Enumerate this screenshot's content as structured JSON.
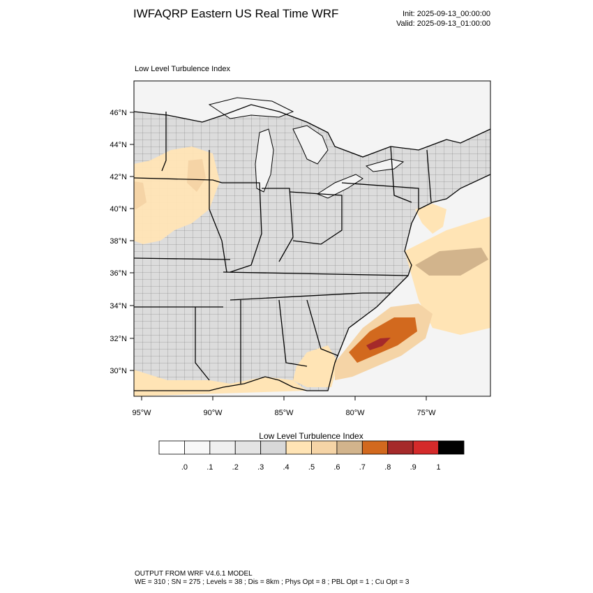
{
  "header": {
    "title": "IWFAQRP Eastern US Real Time WRF",
    "init": "Init: 2025-09-13_00:00:00",
    "valid": "Valid: 2025-09-13_01:00:00"
  },
  "map": {
    "subtitle": "Low Level Turbulence Index",
    "lat_ticks": [
      "46°N",
      "44°N",
      "42°N",
      "40°N",
      "38°N",
      "36°N",
      "34°N",
      "32°N",
      "30°N"
    ],
    "lon_ticks": [
      "95°W",
      "90°W",
      "85°W",
      "80°W",
      "75°W"
    ],
    "colors": {
      "land_low": "#dcdcdc",
      "water": "#f4f4f4",
      "ocean_gray": "#e0e0e0",
      "level_05": "#ffe4b5",
      "level_06": "#f5d4a6",
      "level_07": "#d2b48c",
      "level_08": "#d2691e",
      "level_09": "#a52a2a"
    }
  },
  "colorbar": {
    "title": "Low Level Turbulence Index",
    "labels": [
      ".0",
      ".1",
      ".2",
      ".3",
      ".4",
      ".5",
      ".6",
      ".7",
      ".8",
      ".9",
      "1"
    ],
    "colors": [
      "#ffffff",
      "#f8f8f8",
      "#f0f0f0",
      "#e4e4e4",
      "#d8d8d8",
      "#ffe4b5",
      "#f5d4a6",
      "#d2b48c",
      "#d2691e",
      "#a52a2a",
      "#d42a2a",
      "#000000"
    ]
  },
  "footer": {
    "line1": "OUTPUT FROM WRF V4.6.1 MODEL",
    "line2": "WE = 310 ; SN = 275 ; Levels = 38 ; Dis = 8km ; Phys Opt = 8 ; PBL Opt = 1 ; Cu Opt = 3"
  }
}
